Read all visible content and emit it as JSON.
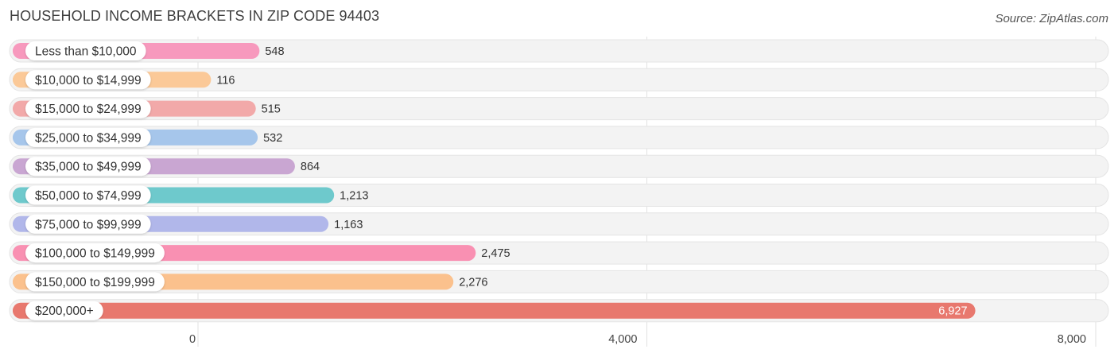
{
  "chart_data": {
    "type": "bar",
    "orientation": "horizontal",
    "title": "HOUSEHOLD INCOME BRACKETS IN ZIP CODE 94403",
    "source": "Source: ZipAtlas.com",
    "categories": [
      "Less than $10,000",
      "$10,000 to $14,999",
      "$15,000 to $24,999",
      "$25,000 to $34,999",
      "$35,000 to $49,999",
      "$50,000 to $74,999",
      "$75,000 to $99,999",
      "$100,000 to $149,999",
      "$150,000 to $199,999",
      "$200,000+"
    ],
    "values": [
      548,
      116,
      515,
      532,
      864,
      1213,
      1163,
      2475,
      2276,
      6927
    ],
    "value_labels": [
      "548",
      "116",
      "515",
      "532",
      "864",
      "1,213",
      "1,163",
      "2,475",
      "2,276",
      "6,927"
    ],
    "colors": [
      "#f799bd",
      "#fbc998",
      "#f2a9a9",
      "#a6c6eb",
      "#c9a6d2",
      "#6ec9cc",
      "#b1b7ea",
      "#f990b2",
      "#fbc18d",
      "#e8786e"
    ],
    "xlim": [
      0,
      8000
    ],
    "xticks": [
      0,
      4000,
      8000
    ],
    "xtick_labels": [
      "0",
      "4,000",
      "8,000"
    ],
    "xlabel": "",
    "ylabel": "",
    "grid": true,
    "legend": false
  }
}
